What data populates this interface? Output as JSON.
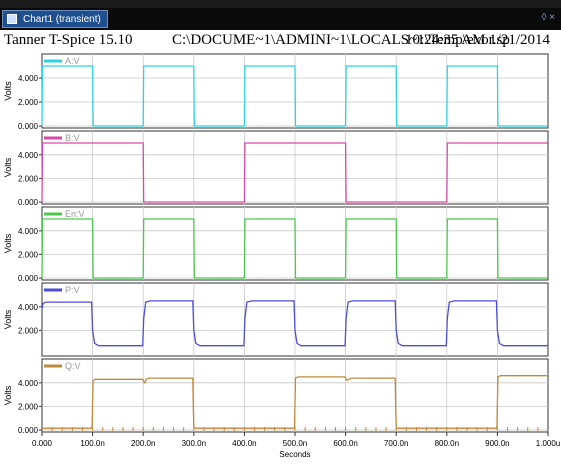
{
  "window": {
    "tab_label": "Chart1 (transient)",
    "controls": "◊ ×"
  },
  "header": {
    "app": "Tanner T-Spice 15.10",
    "path": "C:\\DOCUME~1\\ADMINI~1\\LOCALS~1\\Temp\\exor.sp",
    "timestamp": "10:24:35 AM 1/21/2014"
  },
  "colors": {
    "AV": "#2dd4e0",
    "BV": "#d64aa8",
    "EnV": "#4cc94c",
    "PV": "#4d4dd6",
    "QV": "#c08a3c"
  },
  "chart_data": [
    {
      "type": "line",
      "legend": "A:V",
      "ylabel": "Volts",
      "ylim": [
        0,
        5.0
      ],
      "yticks": [
        "0.000",
        "2.000",
        "4.000"
      ],
      "x": [
        0,
        1,
        99,
        100,
        101,
        199,
        200,
        201,
        299,
        300,
        301,
        399,
        400,
        401,
        499,
        500,
        501,
        599,
        600,
        601,
        699,
        700,
        701,
        799,
        800,
        801,
        899,
        900,
        901,
        999,
        1000
      ],
      "y": [
        0,
        5,
        5,
        5,
        0,
        0,
        0,
        5,
        5,
        5,
        0,
        0,
        0,
        5,
        5,
        5,
        0,
        0,
        0,
        5,
        5,
        5,
        0,
        0,
        0,
        5,
        5,
        5,
        0,
        0,
        0
      ]
    },
    {
      "type": "line",
      "legend": "B:V",
      "ylabel": "Volts",
      "ylim": [
        0,
        5.0
      ],
      "yticks": [
        "0.000",
        "2.000",
        "4.000"
      ],
      "x": [
        0,
        1,
        199,
        200,
        201,
        399,
        400,
        401,
        599,
        600,
        601,
        799,
        800,
        801,
        1000
      ],
      "y": [
        0,
        5,
        5,
        5,
        0,
        0,
        0,
        5,
        5,
        5,
        0,
        0,
        0,
        5,
        5
      ]
    },
    {
      "type": "line",
      "legend": "En:V",
      "ylabel": "Volts",
      "ylim": [
        0,
        5.0
      ],
      "yticks": [
        "0.000",
        "2.000",
        "4.000"
      ],
      "x": [
        0,
        1,
        99,
        100,
        101,
        199,
        200,
        201,
        299,
        300,
        301,
        399,
        400,
        401,
        499,
        500,
        501,
        599,
        600,
        601,
        699,
        700,
        701,
        799,
        800,
        801,
        899,
        900,
        901,
        999,
        1000
      ],
      "y": [
        0,
        5,
        5,
        5,
        0,
        0,
        0,
        5,
        5,
        5,
        0,
        0,
        0,
        5,
        5,
        5,
        0,
        0,
        0,
        5,
        5,
        5,
        0,
        0,
        0,
        5,
        5,
        5,
        0,
        0,
        0
      ]
    },
    {
      "type": "line",
      "legend": "P:V",
      "ylabel": "Volts",
      "ylim": [
        0,
        5.0
      ],
      "yticks": [
        "2.000",
        "4.000"
      ],
      "x": [
        0,
        2,
        8,
        98,
        100,
        104,
        112,
        199,
        201,
        205,
        214,
        298,
        300,
        304,
        312,
        399,
        401,
        405,
        414,
        498,
        500,
        504,
        512,
        599,
        601,
        605,
        614,
        698,
        700,
        704,
        712,
        799,
        801,
        805,
        814,
        898,
        900,
        904,
        912,
        1000
      ],
      "y": [
        3.8,
        4.3,
        4.4,
        4.4,
        2.0,
        0.9,
        0.7,
        0.7,
        3.0,
        4.4,
        4.5,
        4.5,
        2.0,
        0.9,
        0.7,
        0.7,
        3.0,
        4.4,
        4.5,
        4.5,
        2.0,
        0.9,
        0.7,
        0.7,
        3.0,
        4.4,
        4.5,
        4.5,
        2.0,
        0.9,
        0.7,
        0.7,
        3.0,
        4.4,
        4.5,
        4.5,
        2.0,
        0.9,
        0.7,
        0.7
      ]
    },
    {
      "type": "line",
      "legend": "Q:V",
      "ylabel": "Volts",
      "ylim": [
        0,
        5.0
      ],
      "yticks": [
        "0.000",
        "2.000",
        "4.000"
      ],
      "x": [
        0,
        98,
        99,
        101,
        106,
        199,
        201,
        203,
        206,
        212,
        298,
        299,
        300,
        301,
        302,
        499,
        501,
        506,
        599,
        601,
        603,
        606,
        612,
        698,
        699,
        700,
        701,
        702,
        899,
        901,
        906,
        1000
      ],
      "y": [
        0.15,
        0.15,
        0.3,
        4.2,
        4.3,
        4.3,
        4.1,
        4.0,
        4.3,
        4.4,
        4.4,
        2.0,
        0.3,
        0.15,
        0.15,
        0.15,
        4.4,
        4.5,
        4.5,
        4.3,
        4.2,
        4.3,
        4.4,
        4.4,
        2.0,
        0.3,
        0.15,
        0.15,
        0.15,
        4.5,
        4.6,
        4.6
      ]
    }
  ],
  "xaxis": {
    "label": "Seconds",
    "xlim": [
      0,
      1000
    ],
    "tick_values": [
      0,
      100,
      200,
      300,
      400,
      500,
      600,
      700,
      800,
      900,
      1000
    ],
    "tick_labels": [
      "0.000",
      "100.0n",
      "200.0n",
      "300.0n",
      "400.0n",
      "500.0n",
      "600.0n",
      "700.0n",
      "800.0n",
      "900.0n",
      "1.000u"
    ]
  }
}
